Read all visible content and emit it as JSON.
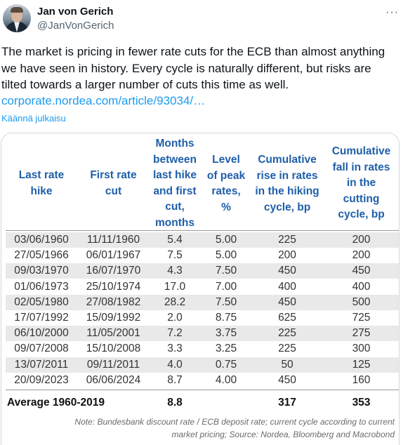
{
  "author": {
    "name": "Jan von Gerich",
    "handle": "@JanVonGerich"
  },
  "more_icon": "···",
  "tweet": {
    "line1": "The market is pricing in fewer rate cuts for the ECB than almost anything",
    "line2": "we have seen in history. Every cycle is naturally different, but risks are",
    "line3": "tilted towards a larger number of cuts this time as well.",
    "link": "corporate.nordea.com/article/93034/…",
    "translate": "Käännä julkaisu"
  },
  "table": {
    "headers": [
      [
        "Last rate",
        "hike"
      ],
      [
        "First rate",
        "cut"
      ],
      [
        "Months",
        "between",
        "last hike",
        "and first",
        "cut,",
        "months"
      ],
      [
        "Level",
        "of peak",
        "rates,",
        "%"
      ],
      [
        "Cumulative",
        "rise in rates",
        "in the hiking",
        "cycle, bp"
      ],
      [
        "Cumulative",
        "fall in rates",
        "in the",
        "cutting",
        "cycle, bp"
      ]
    ],
    "rows": [
      [
        "03/06/1960",
        "11/11/1960",
        "5.4",
        "5.00",
        "225",
        "200"
      ],
      [
        "27/05/1966",
        "06/01/1967",
        "7.5",
        "5.00",
        "200",
        "200"
      ],
      [
        "09/03/1970",
        "16/07/1970",
        "4.3",
        "7.50",
        "450",
        "450"
      ],
      [
        "01/06/1973",
        "25/10/1974",
        "17.0",
        "7.00",
        "400",
        "400"
      ],
      [
        "02/05/1980",
        "27/08/1982",
        "28.2",
        "7.50",
        "450",
        "500"
      ],
      [
        "17/07/1992",
        "15/09/1992",
        "2.0",
        "8.75",
        "625",
        "725"
      ],
      [
        "06/10/2000",
        "11/05/2001",
        "7.2",
        "3.75",
        "225",
        "275"
      ],
      [
        "09/07/2008",
        "15/10/2008",
        "3.3",
        "3.25",
        "225",
        "300"
      ],
      [
        "13/07/2011",
        "09/11/2011",
        "4.0",
        "0.75",
        "50",
        "125"
      ],
      [
        "20/09/2023",
        "06/06/2024",
        "8.7",
        "4.00",
        "450",
        "160"
      ]
    ],
    "average": {
      "label": "Average 1960-2019",
      "months": "8.8",
      "rise": "317",
      "fall": "353"
    },
    "note_line1": "Note: Bundesbank discount rate / ECB deposit rate; current cycle according to current",
    "note_line2": "market pricing; Source: Nordea, Bloomberg and Macrobond"
  }
}
